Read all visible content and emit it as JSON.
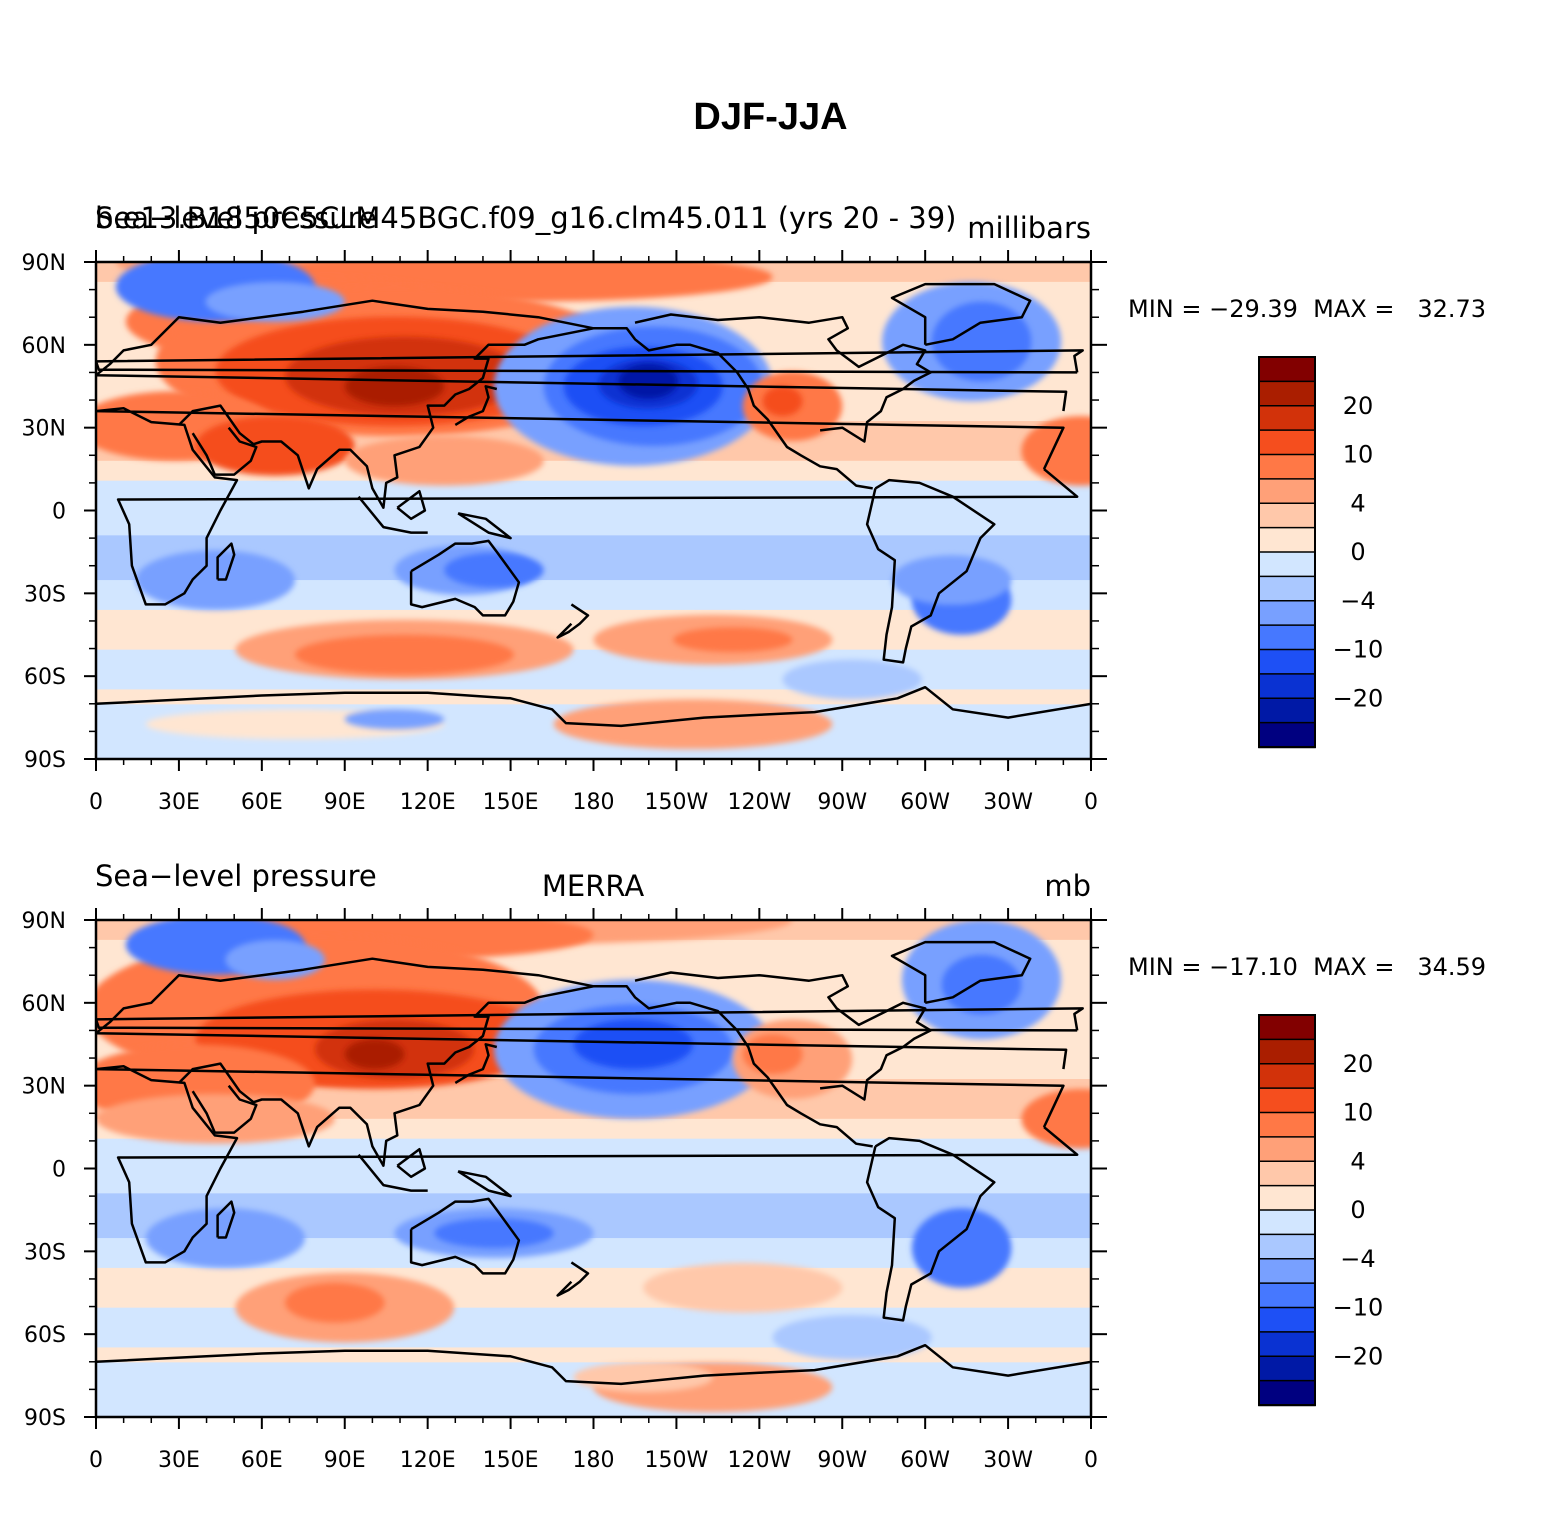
{
  "figure": {
    "title": "DJF-JJA",
    "x_ticks": [
      "0",
      "30E",
      "60E",
      "90E",
      "120E",
      "150E",
      "180",
      "150W",
      "120W",
      "90W",
      "60W",
      "30W",
      "0"
    ],
    "y_ticks": [
      "90N",
      "60N",
      "30N",
      "0",
      "30S",
      "60S",
      "90S"
    ],
    "colors": [
      "#000080",
      "#0019a6",
      "#0a32d2",
      "#1e50f5",
      "#4678ff",
      "#78a0ff",
      "#aac8ff",
      "#d2e6ff",
      "#ffe6d2",
      "#ffc8aa",
      "#ffa078",
      "#ff7846",
      "#f54e1e",
      "#d2320a",
      "#aa1e00",
      "#820000"
    ],
    "colorbar_labels": [
      "20",
      "10",
      "4",
      "0",
      "−4",
      "−10",
      "−20"
    ]
  },
  "panels": [
    {
      "left_title": "Sea−level pressure",
      "left_title_overlap": "b.e13.B1850C5CLM45BGC.f09_g16.clm45.011 (yrs 20 - 39)",
      "center_title": "",
      "right_title": "millibars",
      "stats": "MIN = −29.39  MAX =   32.73"
    },
    {
      "left_title": "Sea−level pressure",
      "left_title_overlap": "",
      "center_title": "MERRA",
      "right_title": "mb",
      "stats": "MIN = −17.10  MAX =   34.59"
    }
  ]
}
